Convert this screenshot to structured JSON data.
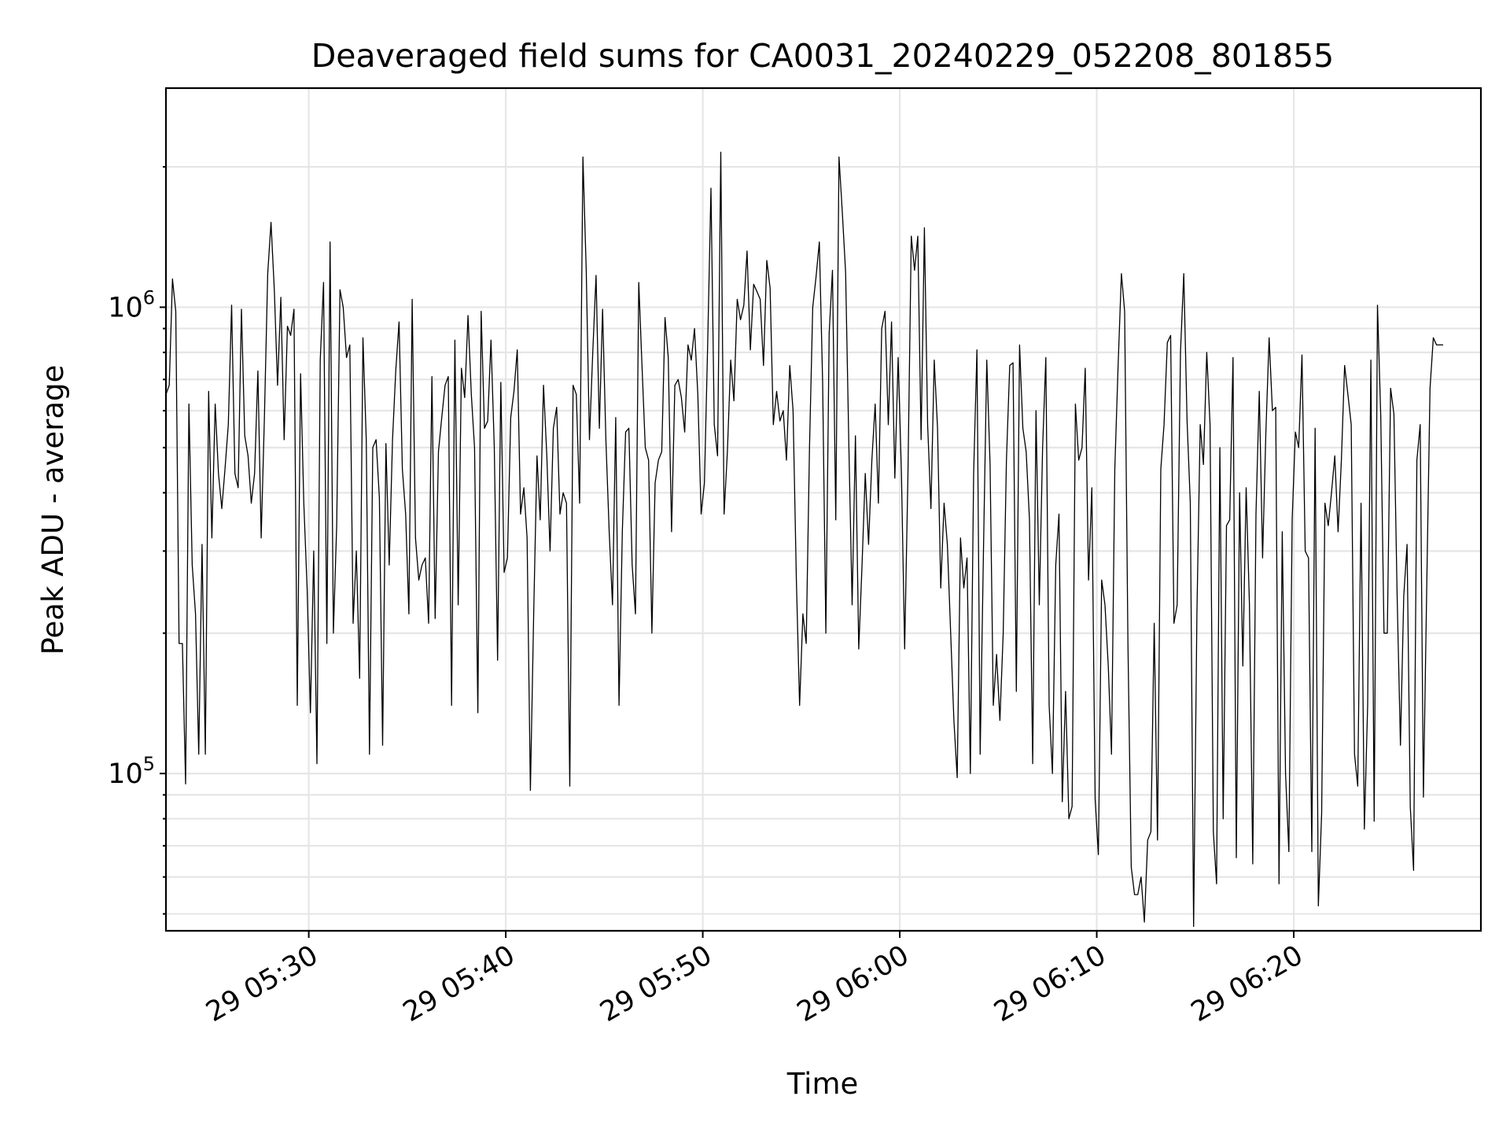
{
  "chart_data": {
    "type": "line",
    "title": "Deaveraged field sums for CA0031_20240229_052208_801855",
    "xlabel": "Time",
    "ylabel": "Peak ADU - average",
    "xlim": [
      "2024-02-29T05:22:45",
      "2024-02-29T06:29:30"
    ],
    "ylim": [
      46000,
      2950000
    ],
    "yscale": "log",
    "grid": true,
    "grid_minor_y": true,
    "legend": false,
    "line_color": "#000000",
    "x_ticks": [
      {
        "value": "2024-02-29T05:30:00",
        "label": "29 05:30"
      },
      {
        "value": "2024-02-29T05:40:00",
        "label": "29 05:40"
      },
      {
        "value": "2024-02-29T05:50:00",
        "label": "29 05:50"
      },
      {
        "value": "2024-02-29T06:00:00",
        "label": "29 06:00"
      },
      {
        "value": "2024-02-29T06:10:00",
        "label": "29 06:10"
      },
      {
        "value": "2024-02-29T06:20:00",
        "label": "29 06:20"
      }
    ],
    "y_ticks": [
      {
        "value": 100000,
        "base": "10",
        "exp": "5"
      },
      {
        "value": 1000000,
        "base": "10",
        "exp": "6"
      }
    ],
    "series": [
      {
        "x_start": "2024-02-29T05:22:45",
        "x_step_seconds": 10,
        "values": [
          650000,
          680000,
          1150000,
          980000,
          190000,
          190000,
          95000,
          620000,
          280000,
          220000,
          110000,
          310000,
          110000,
          660000,
          320000,
          620000,
          440000,
          370000,
          450000,
          560000,
          1010000,
          440000,
          410000,
          990000,
          530000,
          480000,
          380000,
          440000,
          730000,
          320000,
          580000,
          1180000,
          1520000,
          1090000,
          680000,
          1050000,
          520000,
          910000,
          870000,
          990000,
          140000,
          720000,
          380000,
          250000,
          135000,
          300000,
          105000,
          770000,
          1130000,
          190000,
          1380000,
          200000,
          340000,
          1090000,
          1000000,
          780000,
          830000,
          210000,
          300000,
          160000,
          860000,
          520000,
          110000,
          500000,
          520000,
          390000,
          115000,
          510000,
          280000,
          520000,
          730000,
          930000,
          450000,
          360000,
          220000,
          1040000,
          320000,
          260000,
          280000,
          290000,
          210000,
          710000,
          215000,
          490000,
          580000,
          680000,
          710000,
          140000,
          850000,
          230000,
          740000,
          640000,
          960000,
          650000,
          500000,
          135000,
          980000,
          550000,
          570000,
          850000,
          500000,
          175000,
          690000,
          270000,
          290000,
          580000,
          660000,
          810000,
          360000,
          410000,
          320000,
          92000,
          220000,
          480000,
          350000,
          680000,
          480000,
          300000,
          550000,
          610000,
          360000,
          400000,
          380000,
          94000,
          680000,
          650000,
          380000,
          2100000,
          1200000,
          520000,
          800000,
          1170000,
          550000,
          990000,
          520000,
          330000,
          230000,
          580000,
          140000,
          330000,
          540000,
          550000,
          280000,
          220000,
          1130000,
          750000,
          500000,
          470000,
          200000,
          420000,
          470000,
          490000,
          950000,
          780000,
          330000,
          680000,
          700000,
          640000,
          540000,
          830000,
          770000,
          900000,
          650000,
          360000,
          420000,
          830000,
          1800000,
          560000,
          480000,
          2150000,
          360000,
          490000,
          770000,
          630000,
          1040000,
          940000,
          1010000,
          1320000,
          810000,
          1120000,
          1080000,
          1040000,
          750000,
          1260000,
          1100000,
          560000,
          660000,
          570000,
          600000,
          470000,
          750000,
          600000,
          260000,
          140000,
          220000,
          190000,
          500000,
          1000000,
          1160000,
          1380000,
          690000,
          200000,
          880000,
          1200000,
          350000,
          2100000,
          1600000,
          1190000,
          500000,
          230000,
          530000,
          185000,
          280000,
          440000,
          310000,
          470000,
          620000,
          380000,
          900000,
          980000,
          560000,
          930000,
          430000,
          780000,
          440000,
          185000,
          440000,
          1420000,
          1200000,
          1420000,
          520000,
          1480000,
          560000,
          370000,
          770000,
          550000,
          250000,
          380000,
          310000,
          200000,
          130000,
          98000,
          320000,
          250000,
          290000,
          100000,
          440000,
          810000,
          110000,
          300000,
          770000,
          460000,
          140000,
          180000,
          130000,
          200000,
          470000,
          750000,
          760000,
          150000,
          830000,
          550000,
          490000,
          350000,
          105000,
          600000,
          230000,
          500000,
          780000,
          140000,
          100000,
          280000,
          360000,
          87000,
          150000,
          80000,
          85000,
          620000,
          470000,
          500000,
          740000,
          260000,
          410000,
          88000,
          67000,
          260000,
          230000,
          170000,
          110000,
          450000,
          750000,
          1180000,
          980000,
          190000,
          63000,
          55000,
          55000,
          60000,
          48000,
          72000,
          75000,
          210000,
          72000,
          450000,
          560000,
          840000,
          870000,
          210000,
          230000,
          800000,
          1180000,
          570000,
          380000,
          47000,
          220000,
          560000,
          460000,
          800000,
          560000,
          75000,
          58000,
          500000,
          80000,
          340000,
          350000,
          780000,
          66000,
          400000,
          170000,
          410000,
          230000,
          64000,
          360000,
          660000,
          290000,
          540000,
          860000,
          600000,
          610000,
          58000,
          330000,
          100000,
          68000,
          350000,
          540000,
          500000,
          790000,
          300000,
          290000,
          68000,
          550000,
          52000,
          82000,
          380000,
          340000,
          400000,
          480000,
          330000,
          470000,
          750000,
          650000,
          560000,
          110000,
          94000,
          380000,
          76000,
          140000,
          770000,
          79000,
          1010000,
          580000,
          200000,
          200000,
          670000,
          590000,
          240000,
          115000,
          240000,
          310000,
          85000,
          62000,
          470000,
          560000,
          89000,
          250000,
          670000,
          860000,
          830000,
          830000,
          830000
        ]
      }
    ]
  }
}
